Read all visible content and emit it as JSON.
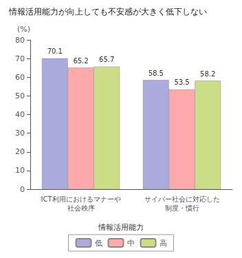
{
  "chart_data": {
    "type": "bar",
    "title": "情報活用能力が向上しても不安感が大きく低下しない",
    "y_label": "(%)",
    "legend_title": "情報活用能力",
    "categories": [
      "ICT利用におけるマナーや\n社会秩序",
      "サイバー社会に対応した\n制度・慣行"
    ],
    "series": [
      {
        "name": "低",
        "color": "#aaaadd",
        "values": [
          70.1,
          58.5
        ]
      },
      {
        "name": "中",
        "color": "#ffaaaa",
        "values": [
          65.2,
          53.5
        ]
      },
      {
        "name": "高",
        "color": "#ccdd88",
        "values": [
          65.7,
          58.2
        ]
      }
    ],
    "ylim": [
      0,
      80
    ],
    "yticks": [
      0,
      10,
      20,
      30,
      40,
      50,
      60,
      70,
      80
    ],
    "grid": false,
    "legend": "bottom",
    "data_labels": true
  }
}
